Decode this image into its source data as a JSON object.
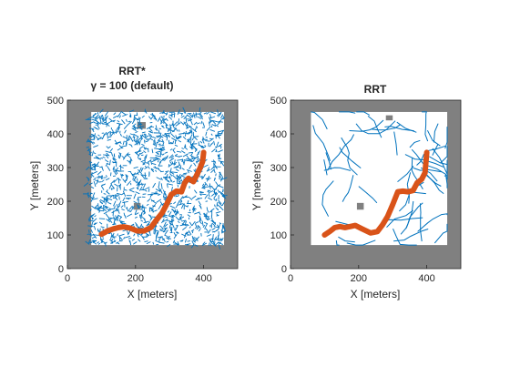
{
  "colors": {
    "obstacle": "#808080",
    "free_space": "#ffffff",
    "tree": "#0072bd",
    "path": "#d95319",
    "axis": "#262626"
  },
  "chart_data": [
    {
      "type": "line",
      "panel": "left",
      "title_line1": "RRT*",
      "title_line2": "γ  =  100  (default)",
      "xlabel": "X [meters]",
      "ylabel": "Y [meters]",
      "xlim": [
        0,
        500
      ],
      "ylim": [
        0,
        500
      ],
      "xticks": [
        0,
        200,
        400
      ],
      "yticks": [
        0,
        100,
        200,
        300,
        400,
        500
      ],
      "map": {
        "extent": [
          0,
          500
        ],
        "free_region": {
          "x": [
            60,
            460
          ],
          "y": [
            70,
            465
          ]
        }
      },
      "obstacles": [
        {
          "x": [
            205,
            230
          ],
          "y": [
            415,
            435
          ]
        },
        {
          "x": [
            195,
            215
          ],
          "y": [
            175,
            195
          ]
        },
        {
          "x": [
            55,
            70
          ],
          "y": [
            65,
            470
          ]
        }
      ],
      "tree": {
        "style": "dense",
        "seed": 7
      },
      "series": [
        {
          "kind": "path",
          "x": [
            100,
            118,
            135,
            150,
            165,
            185,
            205,
            225,
            245,
            262,
            278,
            290,
            305,
            320,
            335,
            345,
            355,
            370,
            380,
            390,
            397,
            400
          ],
          "y": [
            102,
            112,
            118,
            122,
            124,
            120,
            112,
            112,
            122,
            145,
            165,
            188,
            220,
            230,
            228,
            255,
            268,
            258,
            278,
            300,
            318,
            345
          ]
        }
      ]
    },
    {
      "type": "line",
      "panel": "right",
      "title_line1": "RRT",
      "xlabel": "X [meters]",
      "ylabel": "Y [meters]",
      "xlim": [
        0,
        500
      ],
      "ylim": [
        0,
        500
      ],
      "xticks": [
        0,
        200,
        400
      ],
      "yticks": [
        0,
        100,
        200,
        300,
        400,
        500
      ],
      "map": {
        "extent": [
          0,
          500
        ],
        "free_region": {
          "x": [
            60,
            460
          ],
          "y": [
            70,
            465
          ]
        }
      },
      "obstacles": [
        {
          "x": [
            195,
            215
          ],
          "y": [
            175,
            195
          ]
        },
        {
          "x": [
            280,
            300
          ],
          "y": [
            440,
            455
          ]
        }
      ],
      "tree": {
        "style": "sparse",
        "seed": 3
      },
      "series": [
        {
          "kind": "path",
          "x": [
            100,
            115,
            130,
            145,
            160,
            175,
            190,
            210,
            235,
            255,
            270,
            285,
            300,
            315,
            330,
            345,
            360,
            372,
            385,
            395,
            400
          ],
          "y": [
            100,
            110,
            122,
            125,
            122,
            125,
            128,
            118,
            106,
            110,
            130,
            155,
            190,
            228,
            230,
            228,
            232,
            255,
            265,
            285,
            345
          ]
        }
      ]
    }
  ]
}
